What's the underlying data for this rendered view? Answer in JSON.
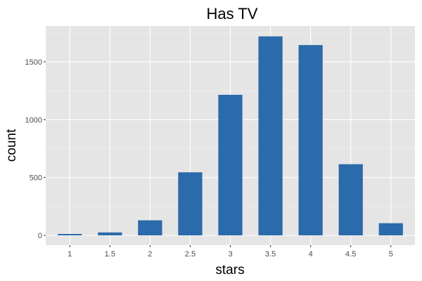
{
  "chart_data": {
    "type": "bar",
    "title": "Has TV",
    "xlabel": "stars",
    "ylabel": "count",
    "categories": [
      "1",
      "1.5",
      "2",
      "2.5",
      "3",
      "3.5",
      "4",
      "4.5",
      "5"
    ],
    "x": [
      1,
      1.5,
      2,
      2.5,
      3,
      3.5,
      4,
      4.5,
      5
    ],
    "values": [
      12,
      25,
      130,
      545,
      1215,
      1720,
      1645,
      615,
      105
    ],
    "xlim": [
      0.7,
      5.3
    ],
    "ylim": [
      -85,
      1810
    ],
    "yticks": [
      0,
      500,
      1000,
      1500
    ],
    "ytick_labels": [
      "0",
      "500",
      "1000",
      "1500"
    ],
    "bar_color": "#2b6aab",
    "panel_color": "#e5e5e5",
    "grid": true,
    "legend": "none"
  }
}
